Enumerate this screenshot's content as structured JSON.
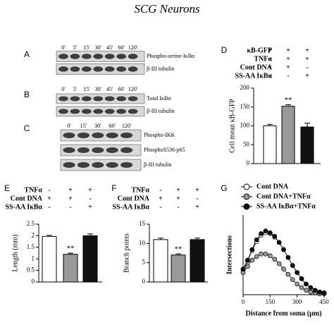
{
  "title": "SCG Neurons",
  "blots": [
    {
      "letter": "A",
      "timepoints": [
        "0'",
        "5'",
        "15'",
        "30'",
        "45'",
        "60'",
        "120'"
      ],
      "rows": [
        "Phospho-serine-IκBα",
        "β-III tubulin"
      ]
    },
    {
      "letter": "B",
      "timepoints": [
        "0'",
        "5'",
        "15'",
        "30'",
        "45'",
        "60'",
        "120'"
      ],
      "rows": [
        "Total IκBα",
        "β-III tubulin"
      ]
    },
    {
      "letter": "C",
      "timepoints": [
        "0'",
        "15'",
        "30'",
        "60'",
        "120'"
      ],
      "rows": [
        "Phospho-IKK",
        "PhosphoS536-p65",
        "β-III tubulin"
      ]
    }
  ],
  "chart_data": [
    {
      "type": "bar",
      "letter": "D",
      "conditions": [
        {
          "label": "κB-GFP",
          "signs": [
            "+",
            "+",
            "+"
          ]
        },
        {
          "label": "TNFα",
          "signs": [
            "-",
            "+",
            "+"
          ]
        },
        {
          "label": "Cont DNA",
          "signs": [
            "+",
            "+",
            "-"
          ]
        },
        {
          "label": "SS-AA IκBα",
          "signs": [
            "-",
            "-",
            "+"
          ]
        }
      ],
      "ylabel": "Cell mean κB-GFP",
      "values": [
        100,
        152,
        97
      ],
      "errors": [
        4,
        4,
        10
      ],
      "colors": [
        "#ffffff",
        "#999999",
        "#111111"
      ],
      "significance": [
        null,
        "**",
        null
      ],
      "ylim": [
        0,
        200
      ],
      "yticks": [
        0,
        50,
        100,
        150,
        200
      ]
    },
    {
      "type": "bar",
      "letter": "E",
      "conditions": [
        {
          "label": "TNFα",
          "signs": [
            "-",
            "+",
            "+"
          ]
        },
        {
          "label": "Cont DNA",
          "signs": [
            "+",
            "+",
            "-"
          ]
        },
        {
          "label": "SS-AA IκBα",
          "signs": [
            "-",
            "-",
            "+"
          ]
        }
      ],
      "ylabel": "Length (mm)",
      "values": [
        1.97,
        1.2,
        2.0
      ],
      "errors": [
        0.05,
        0.05,
        0.08
      ],
      "colors": [
        "#ffffff",
        "#999999",
        "#111111"
      ],
      "significance": [
        null,
        "**",
        null
      ],
      "ylim": [
        0,
        2.5
      ],
      "yticks": [
        0,
        0.5,
        1,
        1.5,
        2,
        2.5
      ]
    },
    {
      "type": "bar",
      "letter": "F",
      "conditions": [
        {
          "label": "TNFα",
          "signs": [
            "-",
            "+",
            "+"
          ]
        },
        {
          "label": "Cont DNA",
          "signs": [
            "+",
            "+",
            "-"
          ]
        },
        {
          "label": "SS-AA IκBα",
          "signs": [
            "-",
            "-",
            "+"
          ]
        }
      ],
      "ylabel": "Branch points",
      "values": [
        11,
        7,
        11
      ],
      "errors": [
        0.4,
        0.3,
        0.4
      ],
      "colors": [
        "#ffffff",
        "#999999",
        "#111111"
      ],
      "significance": [
        null,
        "**",
        null
      ],
      "ylim": [
        0,
        15
      ],
      "yticks": [
        0,
        5,
        10,
        15
      ]
    },
    {
      "type": "line",
      "letter": "G",
      "xlabel": "Distance from soma (µm)",
      "ylabel": "Intersections",
      "x": [
        0,
        25,
        50,
        75,
        100,
        125,
        150,
        175,
        200,
        225,
        250,
        275,
        300,
        325,
        350,
        375,
        400,
        425,
        450
      ],
      "series": [
        {
          "name": "Cont DNA",
          "color": "#ffffff",
          "values": [
            2.8,
            3.8,
            5.0,
            6.0,
            6.7,
            7.0,
            6.9,
            6.5,
            5.9,
            5.1,
            4.2,
            3.3,
            2.5,
            1.8,
            1.2,
            0.8,
            0.5,
            0.3,
            0.2
          ]
        },
        {
          "name": "Cont DNA+TNFα",
          "color": "#999999",
          "values": [
            2.5,
            3.2,
            3.9,
            4.3,
            4.6,
            4.6,
            4.4,
            4.0,
            3.5,
            2.9,
            2.3,
            1.7,
            1.2,
            0.8,
            0.5,
            0.3,
            0.2,
            0.1,
            0.1
          ]
        },
        {
          "name": "SS-AA IκBα+TNFα",
          "color": "#111111",
          "values": [
            2.9,
            3.9,
            5.1,
            6.2,
            6.9,
            7.2,
            7.0,
            6.6,
            5.9,
            5.1,
            4.2,
            3.3,
            2.5,
            1.8,
            1.2,
            0.8,
            0.5,
            0.3,
            0.2
          ]
        }
      ],
      "xlim": [
        0,
        450
      ],
      "xticks": [
        0,
        150,
        300,
        450
      ],
      "ylim": [
        0,
        9
      ]
    }
  ]
}
